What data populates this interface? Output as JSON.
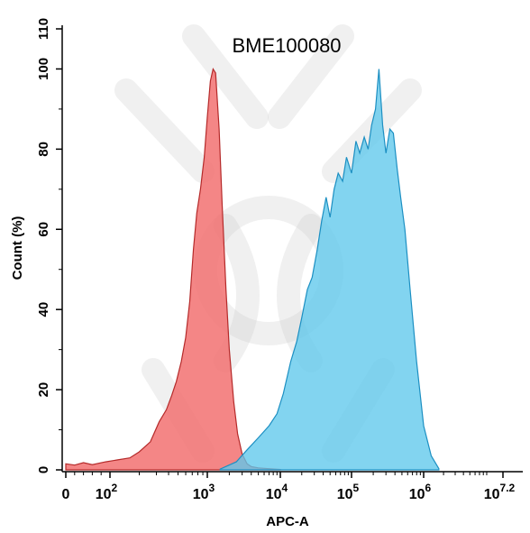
{
  "chart_data": {
    "type": "area",
    "title": "BME100080",
    "xlabel": "APC-A",
    "ylabel": "Count (%)",
    "x_scale": "biexponential",
    "xlim": [
      0,
      15848932
    ],
    "ylim": [
      0,
      110
    ],
    "y_ticks": [
      0,
      20,
      40,
      60,
      80,
      100,
      110
    ],
    "x_ticks": [
      {
        "value": 0,
        "base": "0",
        "exp": ""
      },
      {
        "value": 100,
        "base": "10",
        "exp": "2"
      },
      {
        "value": 1000,
        "base": "10",
        "exp": "3"
      },
      {
        "value": 10000,
        "base": "10",
        "exp": "4"
      },
      {
        "value": 100000,
        "base": "10",
        "exp": "5"
      },
      {
        "value": 1000000,
        "base": "10",
        "exp": "6"
      },
      {
        "value": 15848932,
        "base": "10",
        "exp": "7.2"
      }
    ],
    "grid": false,
    "series": [
      {
        "color": "#f26b6b",
        "stroke": "#b52a2a",
        "x": [
          0,
          20,
          40,
          60,
          90,
          120,
          160,
          200,
          260,
          320,
          380,
          430,
          480,
          540,
          600,
          660,
          720,
          780,
          850,
          930,
          1000,
          1100,
          1200,
          1300,
          1450,
          1600,
          1800,
          2000,
          2300,
          2600,
          3000,
          3500,
          4000,
          5000,
          7000,
          10000
        ],
        "values": [
          1.5,
          1.2,
          1.8,
          1.3,
          2.0,
          2.5,
          3.0,
          4.5,
          7.0,
          12.0,
          15.0,
          18.5,
          22.0,
          27.0,
          33.0,
          42.0,
          55.0,
          64.0,
          70.0,
          78.0,
          88.0,
          97.0,
          100.0,
          99.0,
          85.0,
          66.0,
          45.0,
          30.0,
          17.0,
          9.0,
          4.0,
          1.5,
          0.8,
          0.5,
          0.3,
          0.1
        ]
      },
      {
        "color": "#5fc8ec",
        "stroke": "#1c8fc2",
        "x": [
          1500,
          2500,
          3500,
          5000,
          7000,
          9000,
          11000,
          14000,
          17000,
          20000,
          24000,
          28000,
          33000,
          38000,
          44000,
          50000,
          57000,
          65000,
          75000,
          85000,
          100000,
          115000,
          130000,
          150000,
          170000,
          190000,
          215000,
          240000,
          270000,
          300000,
          340000,
          380000,
          430000,
          480000,
          550000,
          650000,
          800000,
          1000000,
          1300000,
          1700000
        ],
        "values": [
          0.2,
          2.0,
          5.0,
          8.0,
          11.0,
          14.0,
          19.0,
          27.0,
          32.0,
          38.0,
          45.0,
          48.0,
          55.0,
          62.0,
          68.0,
          63.0,
          70.0,
          74.0,
          72.0,
          78.0,
          74.0,
          82.0,
          79.0,
          83.0,
          80.0,
          86.0,
          90.0,
          100.0,
          86.0,
          79.0,
          85.0,
          84.0,
          75.0,
          68.0,
          60.0,
          45.0,
          27.0,
          11.0,
          3.5,
          0.3
        ]
      }
    ],
    "watermark": "logo"
  }
}
